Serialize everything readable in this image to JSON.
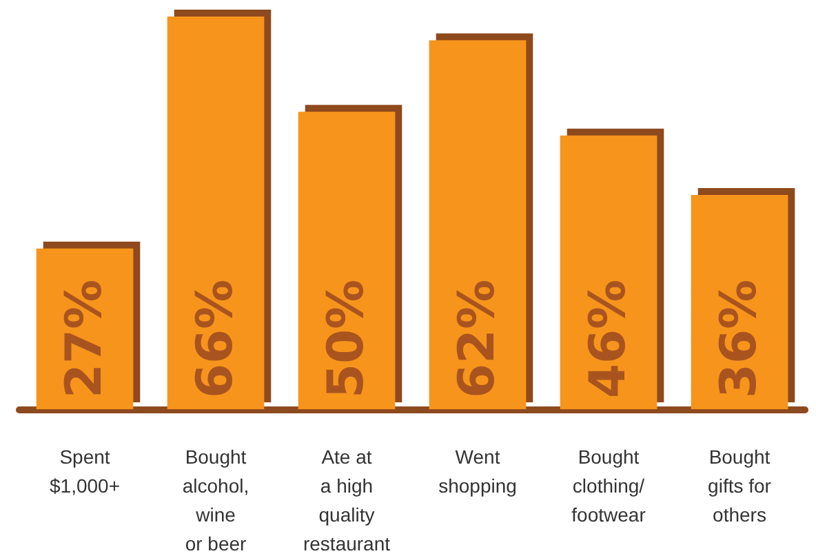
{
  "chart_data": {
    "type": "bar",
    "categories": [
      "Spent\n$1,000+",
      "Bought\nalcohol,\nwine\nor beer",
      "Ate at\na high\nquality\nrestaurant",
      "Went\nshopping",
      "Bought\nclothing/\nfootwear",
      "Bought\ngifts for\nothers"
    ],
    "values": [
      27,
      66,
      50,
      62,
      46,
      36
    ],
    "value_labels": [
      "27%",
      "66%",
      "50%",
      "62%",
      "46%",
      "36%"
    ],
    "color": "#f7941d"
  }
}
